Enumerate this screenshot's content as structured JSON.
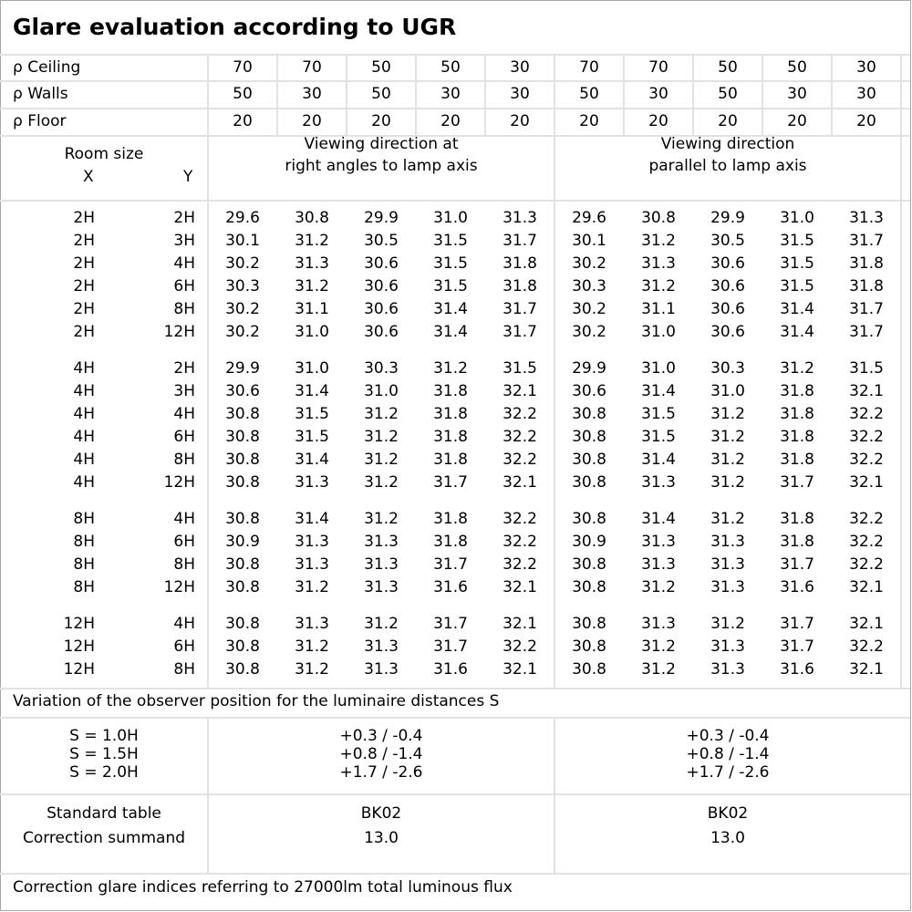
{
  "title": "Glare evaluation according to UGR",
  "reflectances": [
    {
      "label": "ρ Ceiling",
      "values": [
        "70",
        "70",
        "50",
        "50",
        "30",
        "70",
        "70",
        "50",
        "50",
        "30"
      ]
    },
    {
      "label": "ρ Walls",
      "values": [
        "50",
        "30",
        "50",
        "30",
        "30",
        "50",
        "30",
        "50",
        "30",
        "30"
      ]
    },
    {
      "label": "ρ Floor",
      "values": [
        "20",
        "20",
        "20",
        "20",
        "20",
        "20",
        "20",
        "20",
        "20",
        "20"
      ]
    }
  ],
  "header": {
    "room_size": "Room size",
    "x": "X",
    "y": "Y",
    "direction_right_line1": "Viewing direction at",
    "direction_right_line2": "right angles to lamp axis",
    "direction_parallel_line1": "Viewing direction",
    "direction_parallel_line2": "parallel to lamp axis"
  },
  "groups": [
    [
      {
        "x": "2H",
        "y": "2H",
        "values": [
          "29.6",
          "30.8",
          "29.9",
          "31.0",
          "31.3",
          "29.6",
          "30.8",
          "29.9",
          "31.0",
          "31.3"
        ]
      },
      {
        "x": "2H",
        "y": "3H",
        "values": [
          "30.1",
          "31.2",
          "30.5",
          "31.5",
          "31.7",
          "30.1",
          "31.2",
          "30.5",
          "31.5",
          "31.7"
        ]
      },
      {
        "x": "2H",
        "y": "4H",
        "values": [
          "30.2",
          "31.3",
          "30.6",
          "31.5",
          "31.8",
          "30.2",
          "31.3",
          "30.6",
          "31.5",
          "31.8"
        ]
      },
      {
        "x": "2H",
        "y": "6H",
        "values": [
          "30.3",
          "31.2",
          "30.6",
          "31.5",
          "31.8",
          "30.3",
          "31.2",
          "30.6",
          "31.5",
          "31.8"
        ]
      },
      {
        "x": "2H",
        "y": "8H",
        "values": [
          "30.2",
          "31.1",
          "30.6",
          "31.4",
          "31.7",
          "30.2",
          "31.1",
          "30.6",
          "31.4",
          "31.7"
        ]
      },
      {
        "x": "2H",
        "y": "12H",
        "values": [
          "30.2",
          "31.0",
          "30.6",
          "31.4",
          "31.7",
          "30.2",
          "31.0",
          "30.6",
          "31.4",
          "31.7"
        ]
      }
    ],
    [
      {
        "x": "4H",
        "y": "2H",
        "values": [
          "29.9",
          "31.0",
          "30.3",
          "31.2",
          "31.5",
          "29.9",
          "31.0",
          "30.3",
          "31.2",
          "31.5"
        ]
      },
      {
        "x": "4H",
        "y": "3H",
        "values": [
          "30.6",
          "31.4",
          "31.0",
          "31.8",
          "32.1",
          "30.6",
          "31.4",
          "31.0",
          "31.8",
          "32.1"
        ]
      },
      {
        "x": "4H",
        "y": "4H",
        "values": [
          "30.8",
          "31.5",
          "31.2",
          "31.8",
          "32.2",
          "30.8",
          "31.5",
          "31.2",
          "31.8",
          "32.2"
        ]
      },
      {
        "x": "4H",
        "y": "6H",
        "values": [
          "30.8",
          "31.5",
          "31.2",
          "31.8",
          "32.2",
          "30.8",
          "31.5",
          "31.2",
          "31.8",
          "32.2"
        ]
      },
      {
        "x": "4H",
        "y": "8H",
        "values": [
          "30.8",
          "31.4",
          "31.2",
          "31.8",
          "32.2",
          "30.8",
          "31.4",
          "31.2",
          "31.8",
          "32.2"
        ]
      },
      {
        "x": "4H",
        "y": "12H",
        "values": [
          "30.8",
          "31.3",
          "31.2",
          "31.7",
          "32.1",
          "30.8",
          "31.3",
          "31.2",
          "31.7",
          "32.1"
        ]
      }
    ],
    [
      {
        "x": "8H",
        "y": "4H",
        "values": [
          "30.8",
          "31.4",
          "31.2",
          "31.8",
          "32.2",
          "30.8",
          "31.4",
          "31.2",
          "31.8",
          "32.2"
        ]
      },
      {
        "x": "8H",
        "y": "6H",
        "values": [
          "30.9",
          "31.3",
          "31.3",
          "31.8",
          "32.2",
          "30.9",
          "31.3",
          "31.3",
          "31.8",
          "32.2"
        ]
      },
      {
        "x": "8H",
        "y": "8H",
        "values": [
          "30.8",
          "31.3",
          "31.3",
          "31.7",
          "32.2",
          "30.8",
          "31.3",
          "31.3",
          "31.7",
          "32.2"
        ]
      },
      {
        "x": "8H",
        "y": "12H",
        "values": [
          "30.8",
          "31.2",
          "31.3",
          "31.6",
          "32.1",
          "30.8",
          "31.2",
          "31.3",
          "31.6",
          "32.1"
        ]
      }
    ],
    [
      {
        "x": "12H",
        "y": "4H",
        "values": [
          "30.8",
          "31.3",
          "31.2",
          "31.7",
          "32.1",
          "30.8",
          "31.3",
          "31.2",
          "31.7",
          "32.1"
        ]
      },
      {
        "x": "12H",
        "y": "6H",
        "values": [
          "30.8",
          "31.2",
          "31.3",
          "31.7",
          "32.2",
          "30.8",
          "31.2",
          "31.3",
          "31.7",
          "32.2"
        ]
      },
      {
        "x": "12H",
        "y": "8H",
        "values": [
          "30.8",
          "31.2",
          "31.3",
          "31.6",
          "32.1",
          "30.8",
          "31.2",
          "31.3",
          "31.6",
          "32.1"
        ]
      }
    ]
  ],
  "variation": {
    "title": "Variation of the observer position for the luminaire distances S",
    "rows": [
      {
        "label": "S = 1.0H",
        "right": "+0.3 / -0.4",
        "parallel": "+0.3 / -0.4"
      },
      {
        "label": "S = 1.5H",
        "right": "+0.8 / -1.4",
        "parallel": "+0.8 / -1.4"
      },
      {
        "label": "S = 2.0H",
        "right": "+1.7 / -2.6",
        "parallel": "+1.7 / -2.6"
      }
    ]
  },
  "standard": {
    "label_table": "Standard table",
    "label_summand": "Correction summand",
    "right_table": "BK02",
    "right_summand": "13.0",
    "parallel_table": "BK02",
    "parallel_summand": "13.0"
  },
  "footer": "Correction glare indices referring to 27000lm total luminous flux"
}
